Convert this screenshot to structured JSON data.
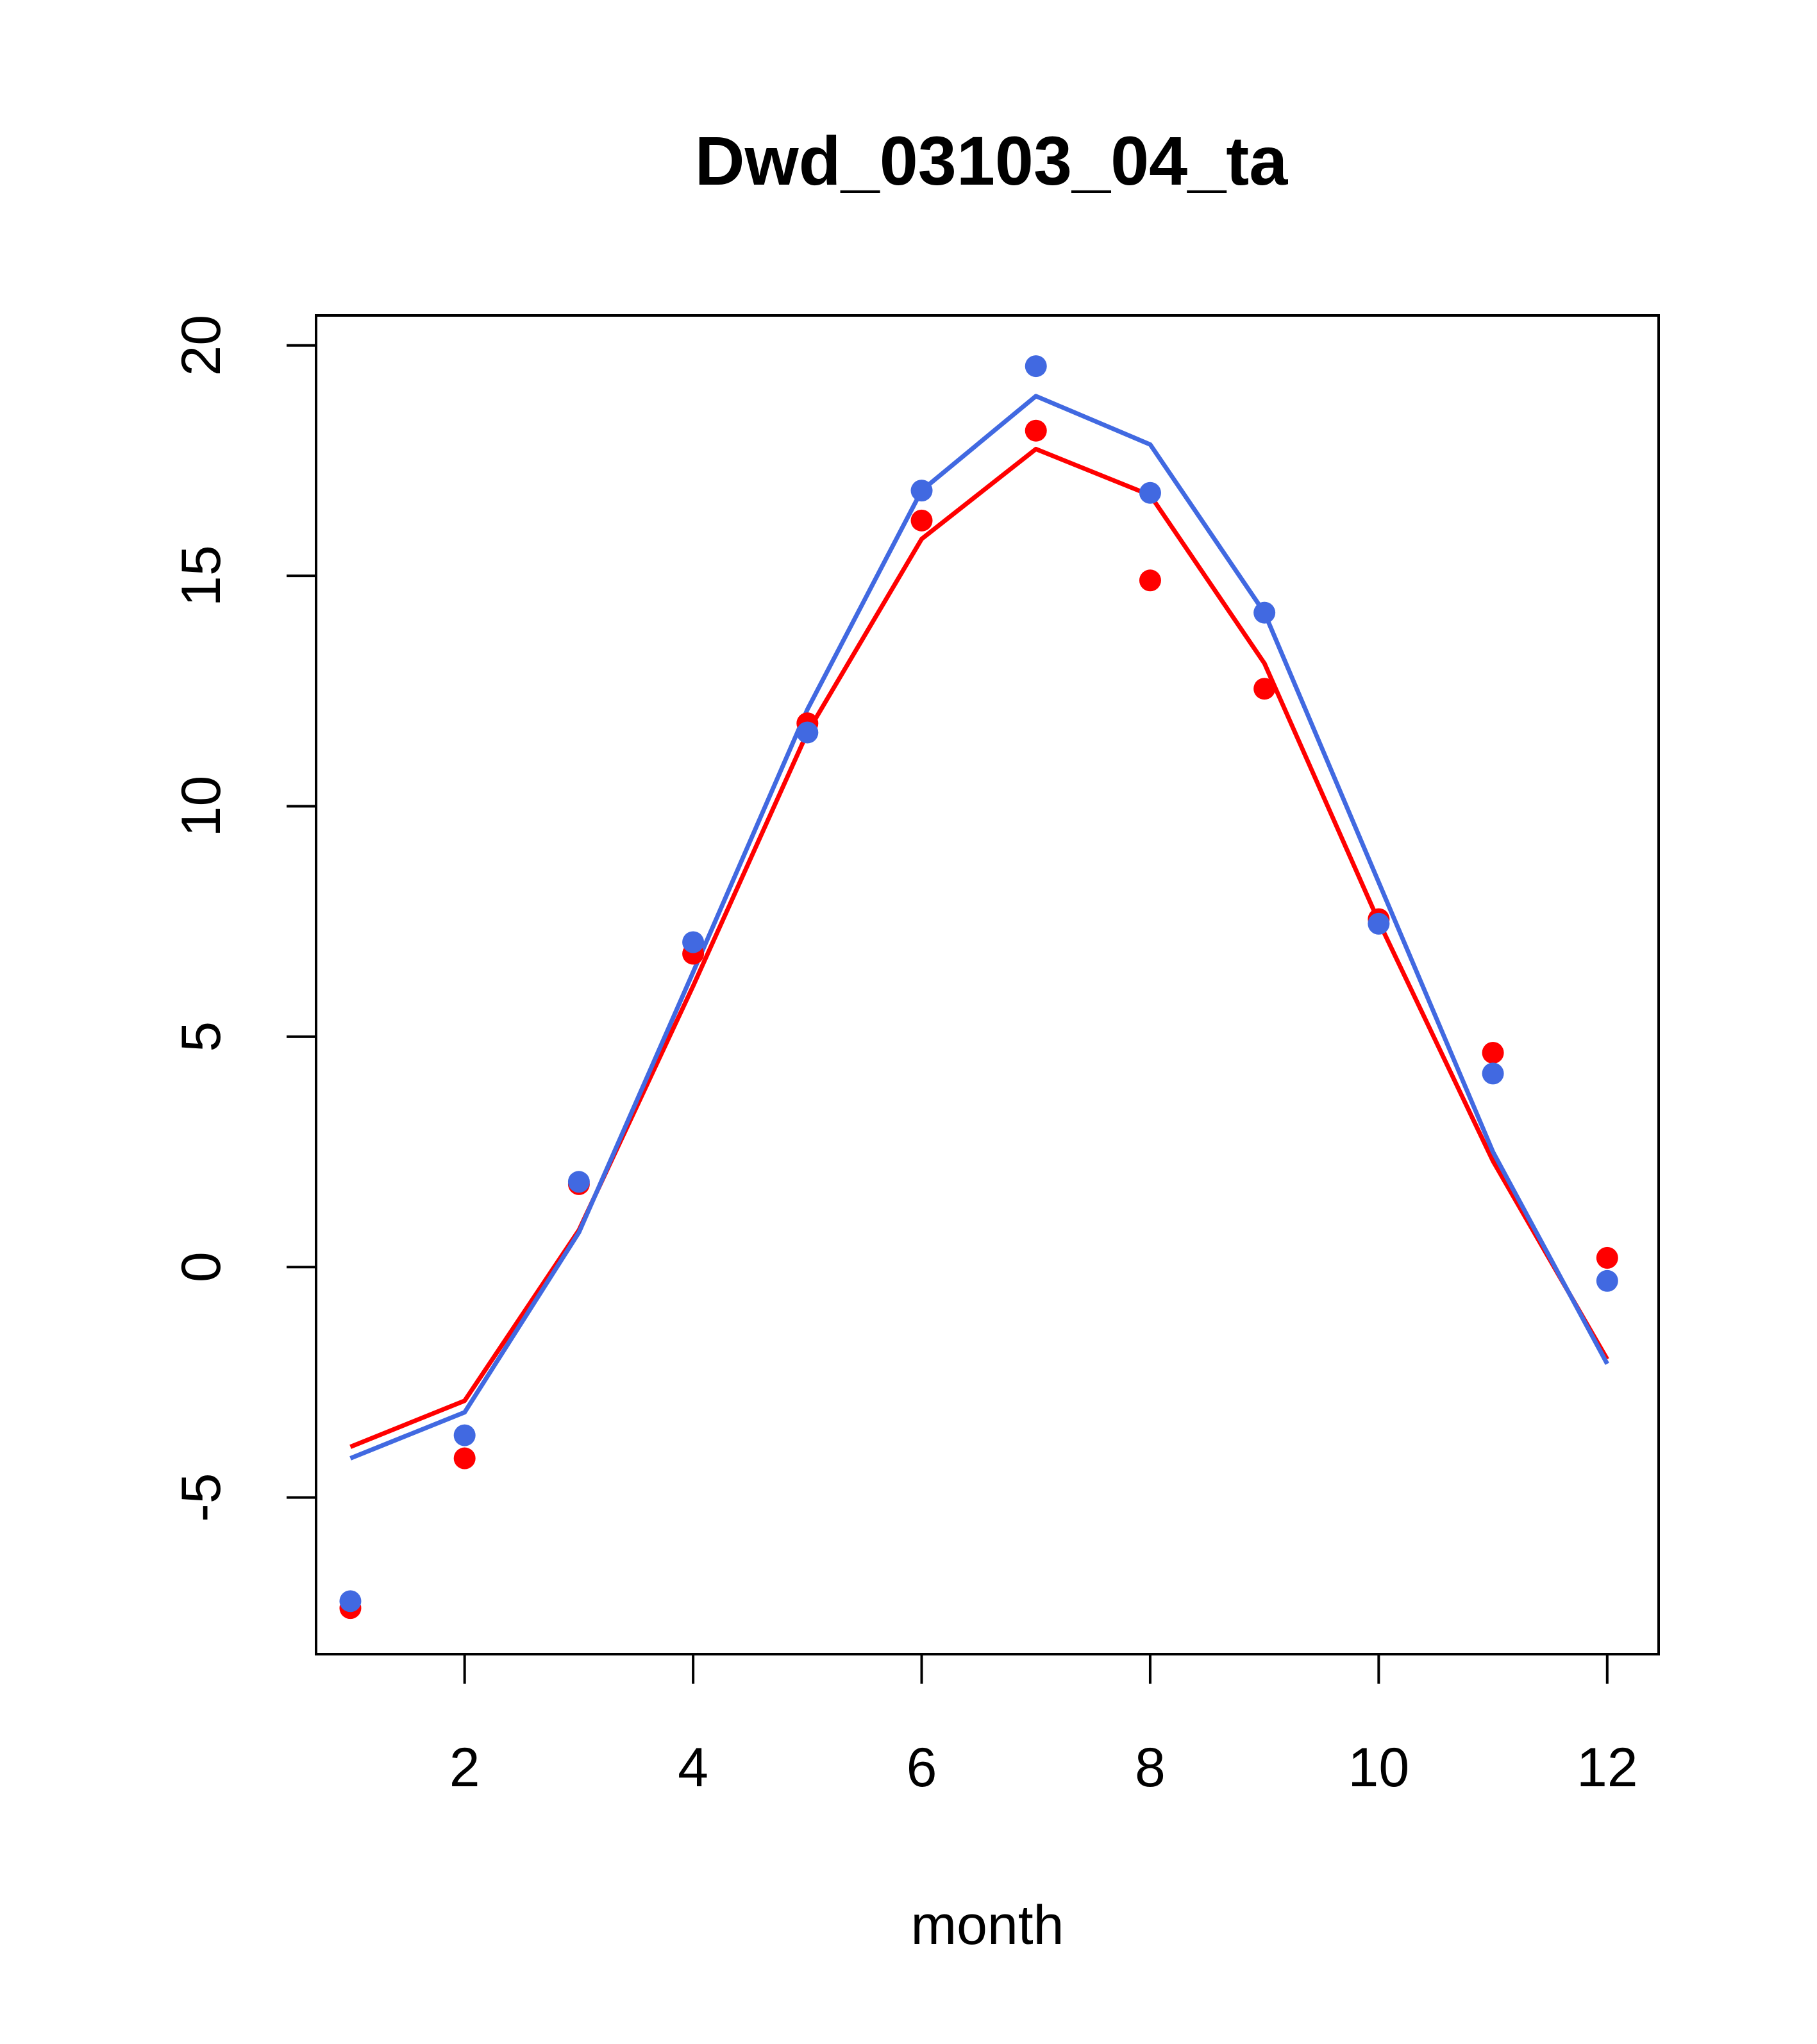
{
  "chart_data": {
    "type": "line",
    "title": "Dwd_03103_04_ta",
    "xlabel": "month",
    "ylabel": "",
    "xlim": [
      0.7,
      12.45
    ],
    "ylim": [
      -8.4,
      20.65
    ],
    "xticks": [
      2,
      4,
      6,
      8,
      10,
      12
    ],
    "yticks": [
      -5,
      0,
      5,
      10,
      15,
      20
    ],
    "x": [
      1,
      2,
      3,
      4,
      5,
      6,
      7,
      8,
      9,
      10,
      11,
      12
    ],
    "series": [
      {
        "color": "#ff0000",
        "lines": [
          -3.9,
          -2.9,
          0.8,
          6.1,
          11.6,
          15.8,
          17.75,
          16.75,
          13.1,
          7.5,
          2.3,
          -2.0
        ],
        "points": [
          -7.4,
          -4.15,
          1.8,
          6.8,
          11.8,
          16.2,
          18.15,
          14.9,
          12.55,
          7.55,
          4.65,
          0.2
        ]
      },
      {
        "color": "#4169e1",
        "lines": [
          -4.15,
          -3.15,
          0.75,
          6.4,
          12.1,
          16.85,
          18.9,
          17.85,
          14.2,
          8.35,
          2.5,
          -2.1
        ],
        "points": [
          -7.25,
          -3.65,
          1.85,
          7.05,
          11.6,
          16.85,
          19.55,
          16.8,
          14.2,
          7.45,
          4.2,
          -0.3
        ]
      }
    ]
  }
}
